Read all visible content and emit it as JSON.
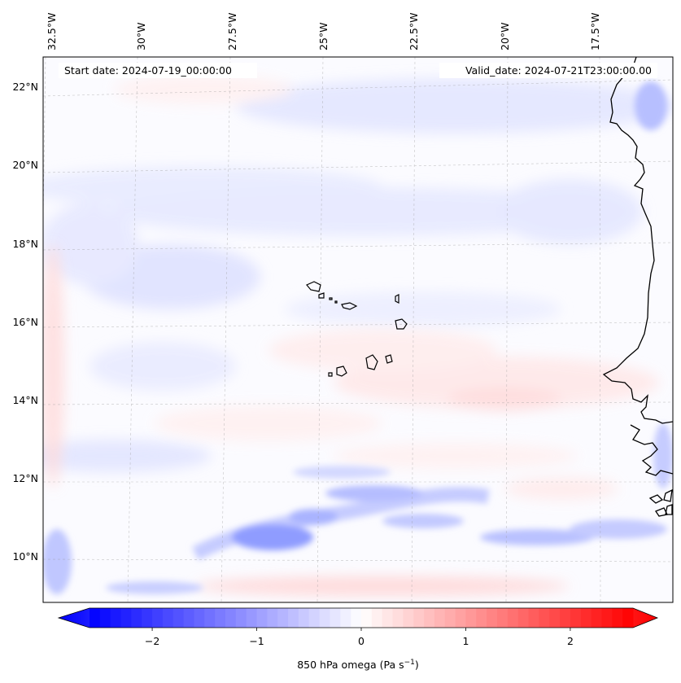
{
  "map": {
    "start_date": "Start date: 2024-07-19_00:00:00",
    "valid_date": "Valid_date: 2024-07-21T23:00:00.00",
    "lon_labels": [
      "32.5°W",
      "30°W",
      "27.5°W",
      "25°W",
      "22.5°W",
      "20°W",
      "17.5°W"
    ],
    "lat_labels": [
      "22°N",
      "20°N",
      "18°N",
      "16°N",
      "14°N",
      "12°N",
      "10°N"
    ],
    "region": "Cape Verde Islands and West African coast",
    "coastlines": true,
    "gridlines": "dashed"
  },
  "colorbar": {
    "label_prefix": "850 hPa omega (Pa s",
    "label_exp": "−1",
    "label_suffix": ")",
    "ticks": [
      "−2",
      "−1",
      "0",
      "1",
      "2"
    ],
    "tick_values": [
      -2,
      -1,
      0,
      1,
      2
    ],
    "range": [
      -2.6,
      2.6
    ],
    "colormap": "bwr",
    "extend": "both",
    "colors": {
      "min": "#0000ff",
      "mid": "#ffffff",
      "max": "#ff0000"
    }
  }
}
